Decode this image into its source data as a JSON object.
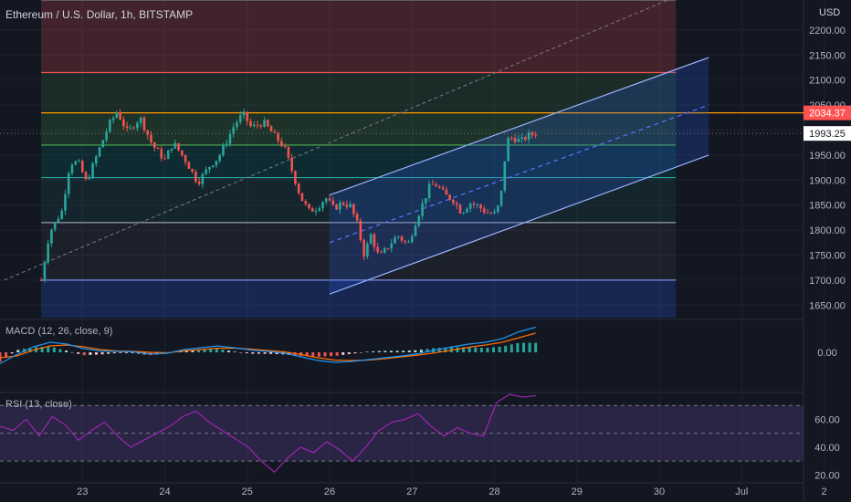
{
  "header": {
    "title": "Ethereum / U.S. Dollar, 1h, BITSTAMP",
    "currency": "USD"
  },
  "indicators": {
    "macd_label": "MACD (12, 26, close, 9)",
    "rsi_label": "RSI (13, close)"
  },
  "colors": {
    "background": "#131722",
    "up": "#26a69a",
    "down": "#ef5350",
    "grid": "#1e222d",
    "channel": "#9bb1ff",
    "macd": "#2196f3",
    "signal": "#ff6d00",
    "rsi": "#9c27b0",
    "resistance": "#ff5252",
    "fib_orange": "#ff9800"
  },
  "chart_data": [
    {
      "type": "candlestick",
      "title": "Ethereum / U.S. Dollar, 1h, BITSTAMP",
      "y_axis": {
        "unit": "USD",
        "range": [
          1625,
          2260
        ],
        "ticks": [
          "1650.00",
          "1700.00",
          "1750.00",
          "1800.00",
          "1850.00",
          "1900.00",
          "1950.00",
          "2000.00",
          "2050.00",
          "2100.00",
          "2150.00",
          "2200.00"
        ]
      },
      "x_axis": {
        "ticks": [
          "23",
          "24",
          "25",
          "26",
          "27",
          "28",
          "29",
          "30",
          "Jul",
          "2"
        ]
      },
      "price_labels": [
        {
          "value": "2034.37",
          "color": "#ff5252"
        },
        {
          "value": "1993.25",
          "color": "#ffffff"
        }
      ],
      "price_path": [
        [
          22.5,
          1700
        ],
        [
          22.6,
          1795
        ],
        [
          22.75,
          1838
        ],
        [
          22.85,
          1935
        ],
        [
          22.95,
          1935
        ],
        [
          23.05,
          1895
        ],
        [
          23.2,
          1960
        ],
        [
          23.32,
          2010
        ],
        [
          23.42,
          2037
        ],
        [
          23.55,
          1995
        ],
        [
          23.7,
          2025
        ],
        [
          23.85,
          1970
        ],
        [
          24.0,
          1940
        ],
        [
          24.1,
          1975
        ],
        [
          24.25,
          1940
        ],
        [
          24.4,
          1895
        ],
        [
          24.55,
          1930
        ],
        [
          24.65,
          1945
        ],
        [
          24.75,
          1978
        ],
        [
          24.85,
          2012
        ],
        [
          24.95,
          2032
        ],
        [
          25.05,
          2005
        ],
        [
          25.2,
          2015
        ],
        [
          25.3,
          1995
        ],
        [
          25.45,
          1965
        ],
        [
          25.55,
          1915
        ],
        [
          25.65,
          1865
        ],
        [
          25.75,
          1838
        ],
        [
          25.85,
          1845
        ],
        [
          25.95,
          1865
        ],
        [
          26.05,
          1843
        ],
        [
          26.15,
          1855
        ],
        [
          26.25,
          1848
        ],
        [
          26.33,
          1815
        ],
        [
          26.42,
          1750
        ],
        [
          26.5,
          1790
        ],
        [
          26.6,
          1745
        ],
        [
          26.7,
          1765
        ],
        [
          26.82,
          1790
        ],
        [
          26.95,
          1770
        ],
        [
          27.05,
          1820
        ],
        [
          27.15,
          1862
        ],
        [
          27.22,
          1890
        ],
        [
          27.3,
          1890
        ],
        [
          27.4,
          1870
        ],
        [
          27.5,
          1860
        ],
        [
          27.6,
          1835
        ],
        [
          27.7,
          1855
        ],
        [
          27.8,
          1848
        ],
        [
          27.9,
          1835
        ],
        [
          28.02,
          1832
        ],
        [
          28.08,
          1870
        ],
        [
          28.15,
          1980
        ],
        [
          28.22,
          1985
        ],
        [
          28.32,
          1978
        ],
        [
          28.42,
          1990
        ],
        [
          28.5,
          1993
        ]
      ],
      "channel": {
        "upper": [
          [
            26.0,
            1870
          ],
          [
            30.6,
            2145
          ]
        ],
        "middle": [
          [
            26.0,
            1775
          ],
          [
            30.6,
            2050
          ]
        ],
        "lower": [
          [
            26.0,
            1672
          ],
          [
            30.6,
            1950
          ]
        ]
      },
      "fib_levels": [
        1700,
        1815,
        1905,
        1970,
        2034.37,
        2115,
        2260
      ],
      "fib_region": {
        "x": [
          22.5,
          30.2
        ]
      }
    },
    {
      "type": "line",
      "title": "MACD (12, 26, close, 9)",
      "y_axis": {
        "ticks": [
          "0.00"
        ]
      },
      "series": [
        {
          "name": "MACD",
          "values": [
            -25,
            -5,
            12,
            22,
            18,
            8,
            3,
            2,
            1,
            -4,
            -2,
            6,
            10,
            14,
            10,
            5,
            2,
            -2,
            -10,
            -18,
            -22,
            -20,
            -16,
            -12,
            -8,
            -3,
            5,
            12,
            18,
            22,
            30,
            45,
            55
          ]
        },
        {
          "name": "Signal",
          "values": [
            -12,
            -8,
            5,
            14,
            16,
            12,
            6,
            3,
            2,
            0,
            -1,
            3,
            6,
            9,
            9,
            7,
            4,
            1,
            -5,
            -12,
            -17,
            -18,
            -17,
            -14,
            -10,
            -6,
            -1,
            5,
            11,
            16,
            22,
            32,
            42
          ]
        }
      ]
    },
    {
      "type": "line",
      "title": "RSI (13, close)",
      "y_axis": {
        "ticks": [
          "20.00",
          "40.00",
          "60.00"
        ],
        "range": [
          15,
          78
        ],
        "bands": [
          30,
          50,
          70
        ]
      },
      "series": [
        {
          "name": "RSI",
          "values": [
            55,
            52,
            60,
            48,
            62,
            56,
            45,
            52,
            58,
            48,
            40,
            45,
            50,
            55,
            62,
            66,
            58,
            52,
            46,
            40,
            30,
            22,
            32,
            40,
            36,
            44,
            38,
            30,
            40,
            52,
            58,
            60,
            64,
            55,
            48,
            54,
            50,
            48,
            72,
            78,
            76,
            77
          ]
        }
      ]
    }
  ]
}
